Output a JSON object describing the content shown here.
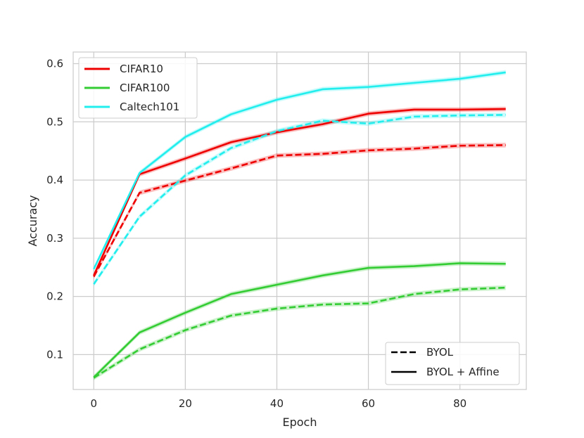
{
  "chart_data": {
    "type": "line",
    "title": "",
    "xlabel": "Epoch",
    "ylabel": "Accuracy",
    "xlim": [
      -4.5,
      94.5
    ],
    "ylim": [
      0.04,
      0.62
    ],
    "xticks": [
      0,
      20,
      40,
      60,
      80
    ],
    "xtick_labels": [
      "0",
      "20",
      "40",
      "60",
      "80"
    ],
    "yticks": [
      0.1,
      0.2,
      0.3,
      0.4,
      0.5,
      0.6
    ],
    "ytick_labels": [
      "0.1",
      "0.2",
      "0.3",
      "0.4",
      "0.5",
      "0.6"
    ],
    "grid": true,
    "x": [
      0,
      10,
      20,
      30,
      40,
      50,
      60,
      70,
      80,
      90
    ],
    "series": [
      {
        "name": "CIFAR10",
        "method": "BYOL + Affine",
        "color": "#ee0000",
        "dash": "solid",
        "values": [
          0.236,
          0.41,
          0.437,
          0.465,
          0.482,
          0.496,
          0.514,
          0.521,
          0.521,
          0.522
        ]
      },
      {
        "name": "CIFAR10",
        "method": "BYOL",
        "color": "#ee0000",
        "dash": "dashed",
        "values": [
          0.234,
          0.378,
          0.399,
          0.42,
          0.442,
          0.445,
          0.451,
          0.454,
          0.459,
          0.46
        ]
      },
      {
        "name": "CIFAR100",
        "method": "BYOL + Affine",
        "color": "#33cc33",
        "dash": "solid",
        "values": [
          0.061,
          0.138,
          0.172,
          0.204,
          0.22,
          0.236,
          0.249,
          0.252,
          0.257,
          0.256
        ]
      },
      {
        "name": "CIFAR100",
        "method": "BYOL",
        "color": "#33cc33",
        "dash": "dashed",
        "values": [
          0.06,
          0.109,
          0.142,
          0.167,
          0.179,
          0.186,
          0.188,
          0.204,
          0.212,
          0.215
        ]
      },
      {
        "name": "Caltech101",
        "method": "BYOL + Affine",
        "color": "#22eeee",
        "dash": "solid",
        "values": [
          0.247,
          0.412,
          0.474,
          0.513,
          0.538,
          0.556,
          0.56,
          0.567,
          0.574,
          0.585
        ]
      },
      {
        "name": "Caltech101",
        "method": "BYOL",
        "color": "#22eeee",
        "dash": "dashed",
        "values": [
          0.221,
          0.337,
          0.408,
          0.455,
          0.484,
          0.502,
          0.497,
          0.509,
          0.511,
          0.512
        ]
      }
    ],
    "legend_datasets": {
      "placement": "top-left",
      "entries": [
        {
          "label": "CIFAR10",
          "color": "#ee0000"
        },
        {
          "label": "CIFAR100",
          "color": "#33cc33"
        },
        {
          "label": "Caltech101",
          "color": "#22eeee"
        }
      ]
    },
    "legend_methods": {
      "placement": "bottom-right",
      "entries": [
        {
          "label": "BYOL",
          "dash": "dashed"
        },
        {
          "label": "BYOL + Affine",
          "dash": "solid"
        }
      ]
    }
  }
}
